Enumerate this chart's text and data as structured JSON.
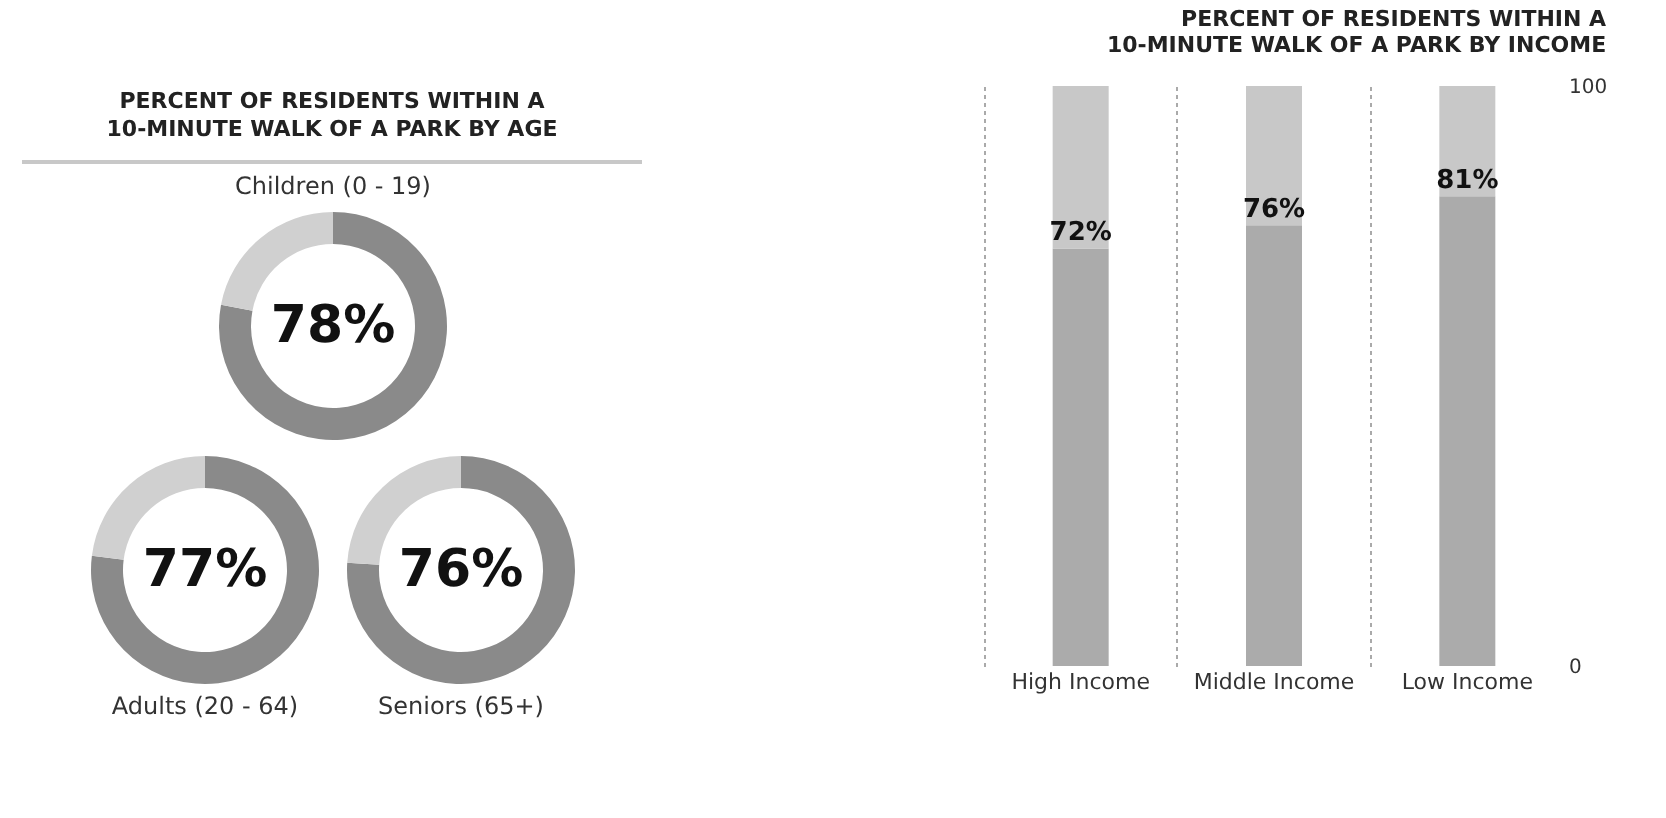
{
  "chart_data": [
    {
      "type": "other",
      "title": "PERCENT OF RESIDENTS WITHIN A 10-MINUTE WALK OF A PARK BY AGE"
    },
    {
      "type": "donut",
      "title": "Children (0 - 19)",
      "categories": [
        null,
        null
      ],
      "values": [
        78,
        22
      ],
      "colors": [
        "#8a8a8a",
        "#d0d0d0"
      ],
      "value_labels": [
        "78%",
        null
      ]
    },
    {
      "type": "donut",
      "title": "Adults (20 - 64)",
      "categories": [
        null,
        null
      ],
      "values": [
        77,
        23
      ],
      "colors": [
        "#8a8a8a",
        "#d0d0d0"
      ],
      "value_labels": [
        "77%",
        null
      ]
    },
    {
      "type": "donut",
      "title": "Seniors (65+)",
      "categories": [
        null,
        null
      ],
      "values": [
        76,
        24
      ],
      "colors": [
        "#8a8a8a",
        "#d0d0d0"
      ],
      "value_labels": [
        "76%",
        null
      ]
    },
    {
      "type": "bar",
      "title": "PERCENT OF RESIDENTS WITHIN A 10-MINUTE WALK OF A PARK BY INCOME",
      "categories": [
        "High Income",
        "Middle Income",
        "Low Income"
      ],
      "stacked": true,
      "ylim": [
        0,
        100
      ],
      "yticks": [
        0,
        100
      ],
      "grid": "x",
      "series": [
        {
          "color": "#ababab",
          "values": [
            72,
            76,
            81
          ],
          "value_labels": [
            "72%",
            "76%",
            "81%"
          ]
        },
        {
          "color": "#c8c8c8",
          "values": [
            28,
            24,
            19
          ]
        }
      ]
    }
  ]
}
